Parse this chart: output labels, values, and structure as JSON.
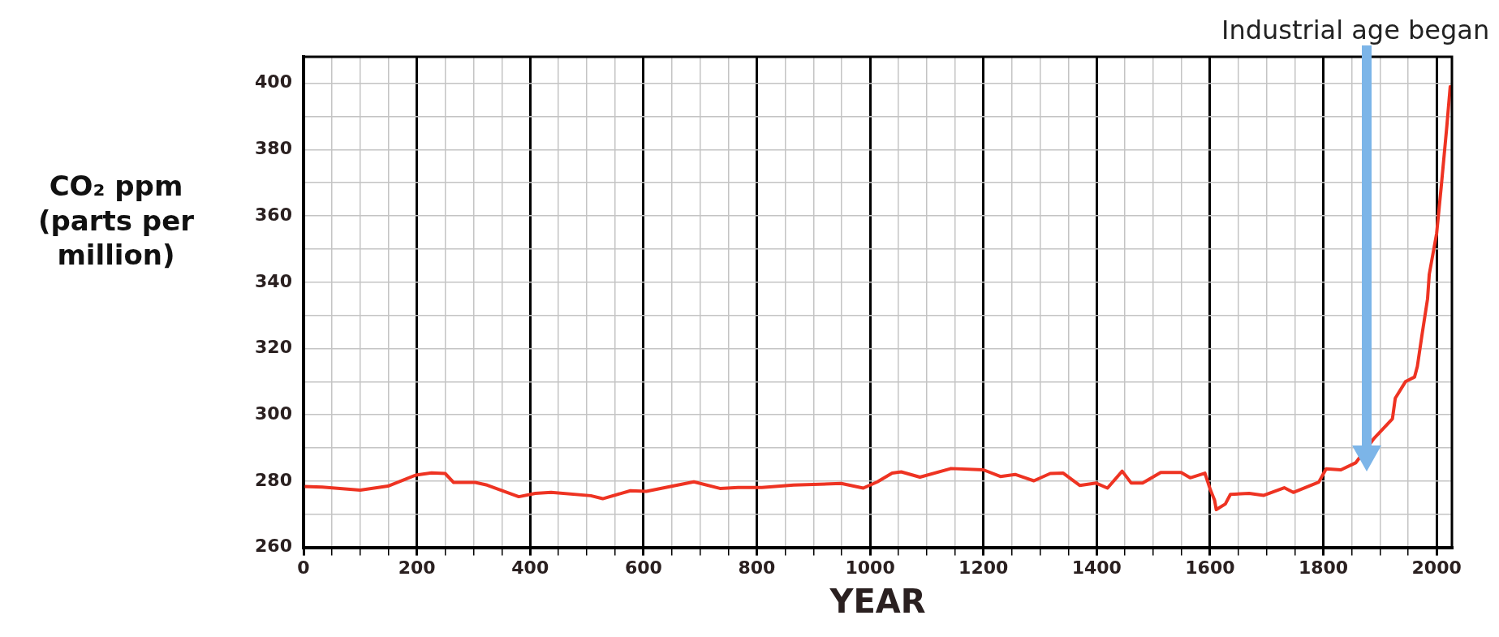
{
  "chart_data": {
    "type": "line",
    "xlabel": "YEAR",
    "ylabel": "CO₂ ppm (parts per million)",
    "color": "#ee3322",
    "marker": "none",
    "grid": true,
    "x": [
      0,
      33,
      100,
      149,
      198,
      226,
      250,
      265,
      303,
      324,
      380,
      409,
      437,
      507,
      528,
      577,
      605,
      689,
      735,
      767,
      809,
      865,
      949,
      988,
      1013,
      1039,
      1055,
      1088,
      1143,
      1200,
      1230,
      1256,
      1289,
      1318,
      1341,
      1370,
      1399,
      1419,
      1445,
      1461,
      1481,
      1513,
      1549,
      1565,
      1591,
      1601,
      1608,
      1611,
      1627,
      1636,
      1669,
      1695,
      1731,
      1747,
      1792,
      1805,
      1831,
      1857,
      1890,
      1922,
      1927,
      1945,
      1961,
      1966,
      1974,
      1984,
      1987,
      2000,
      2008,
      2018,
      2024
    ],
    "values": [
      278.4,
      278.2,
      277.3,
      278.5,
      281.8,
      282.5,
      282.3,
      279.6,
      279.6,
      278.8,
      275.3,
      276.3,
      276.6,
      275.6,
      274.7,
      277.1,
      276.9,
      279.8,
      277.8,
      278.1,
      278.1,
      278.8,
      279.3,
      277.9,
      279.8,
      282.4,
      282.8,
      281.2,
      283.8,
      283.4,
      281.4,
      282,
      280.1,
      282.3,
      282.4,
      278.7,
      279.4,
      277.9,
      283,
      279.4,
      279.4,
      282.6,
      282.6,
      281,
      282.4,
      277.2,
      274.3,
      271.4,
      273.1,
      276,
      276.3,
      275.7,
      278,
      276.6,
      279.7,
      283.7,
      283.4,
      285.5,
      293,
      298.8,
      305,
      310,
      311.4,
      314.6,
      323.9,
      335,
      342.4,
      354.7,
      368.6,
      387,
      399
    ],
    "xlim": [
      0,
      2027
    ],
    "ylim": [
      260,
      408
    ],
    "xticks": [
      0,
      {
        "value": 50,
        "label": null
      },
      {
        "value": 100,
        "label": null
      },
      {
        "value": 150,
        "label": null
      },
      200,
      {
        "value": 250,
        "label": null
      },
      {
        "value": 300,
        "label": null
      },
      {
        "value": 350,
        "label": null
      },
      400,
      {
        "value": 450,
        "label": null
      },
      {
        "value": 500,
        "label": null
      },
      {
        "value": 550,
        "label": null
      },
      600,
      {
        "value": 650,
        "label": null
      },
      {
        "value": 700,
        "label": null
      },
      {
        "value": 750,
        "label": null
      },
      800,
      {
        "value": 850,
        "label": null
      },
      {
        "value": 900,
        "label": null
      },
      {
        "value": 950,
        "label": null
      },
      1000,
      {
        "value": 1050,
        "label": null
      },
      {
        "value": 1100,
        "label": null
      },
      {
        "value": 1150,
        "label": null
      },
      1200,
      {
        "value": 1250,
        "label": null
      },
      {
        "value": 1300,
        "label": null
      },
      {
        "value": 1350,
        "label": null
      },
      1400,
      {
        "value": 1450,
        "label": null
      },
      {
        "value": 1500,
        "label": null
      },
      {
        "value": 1550,
        "label": null
      },
      1600,
      {
        "value": 1650,
        "label": null
      },
      {
        "value": 1700,
        "label": null
      },
      {
        "value": 1750,
        "label": null
      },
      1800,
      {
        "value": 1850,
        "label": null
      },
      {
        "value": 1900,
        "label": null
      },
      {
        "value": 1950,
        "label": null
      },
      2000
    ],
    "yticks": [
      260,
      {
        "value": 270,
        "label": null
      },
      280,
      {
        "value": 290,
        "label": null
      },
      300,
      {
        "value": 310,
        "label": null
      },
      320,
      {
        "value": 330,
        "label": null
      },
      340,
      {
        "value": 350,
        "label": null
      },
      360,
      {
        "value": 370,
        "label": null
      },
      380,
      {
        "value": 390,
        "label": null
      },
      400
    ],
    "annotations": [
      "Industrial age began"
    ]
  }
}
